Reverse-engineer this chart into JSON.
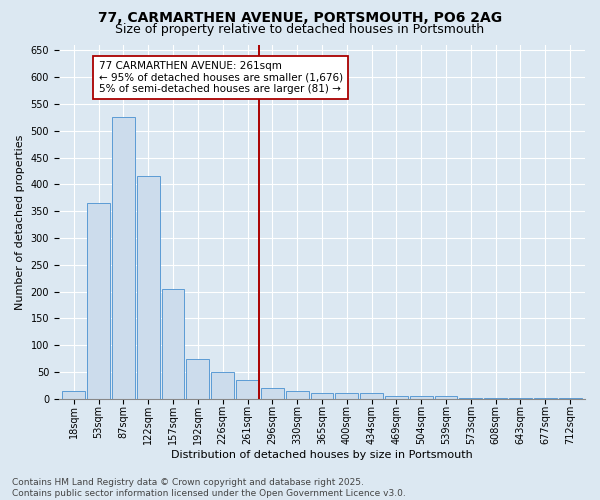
{
  "title1": "77, CARMARTHEN AVENUE, PORTSMOUTH, PO6 2AG",
  "title2": "Size of property relative to detached houses in Portsmouth",
  "xlabel": "Distribution of detached houses by size in Portsmouth",
  "ylabel": "Number of detached properties",
  "categories": [
    "18sqm",
    "53sqm",
    "87sqm",
    "122sqm",
    "157sqm",
    "192sqm",
    "226sqm",
    "261sqm",
    "296sqm",
    "330sqm",
    "365sqm",
    "400sqm",
    "434sqm",
    "469sqm",
    "504sqm",
    "539sqm",
    "573sqm",
    "608sqm",
    "643sqm",
    "677sqm",
    "712sqm"
  ],
  "values": [
    15,
    365,
    525,
    415,
    205,
    75,
    50,
    35,
    20,
    15,
    10,
    10,
    10,
    5,
    5,
    5,
    2,
    2,
    2,
    2,
    2
  ],
  "bar_color": "#ccdcec",
  "bar_edge_color": "#5b9bd5",
  "vline_color": "#aa0000",
  "annotation_text": "77 CARMARTHEN AVENUE: 261sqm\n← 95% of detached houses are smaller (1,676)\n5% of semi-detached houses are larger (81) →",
  "annotation_box_facecolor": "#ffffff",
  "annotation_box_edgecolor": "#aa0000",
  "ylim": [
    0,
    660
  ],
  "yticks": [
    0,
    50,
    100,
    150,
    200,
    250,
    300,
    350,
    400,
    450,
    500,
    550,
    600,
    650
  ],
  "bg_color": "#dce8f2",
  "plot_bg": "#dce8f2",
  "grid_color": "#ffffff",
  "footer": "Contains HM Land Registry data © Crown copyright and database right 2025.\nContains public sector information licensed under the Open Government Licence v3.0.",
  "title1_fontsize": 10,
  "title2_fontsize": 9,
  "axis_label_fontsize": 8,
  "tick_fontsize": 7,
  "footer_fontsize": 6.5,
  "annotation_fontsize": 7.5
}
